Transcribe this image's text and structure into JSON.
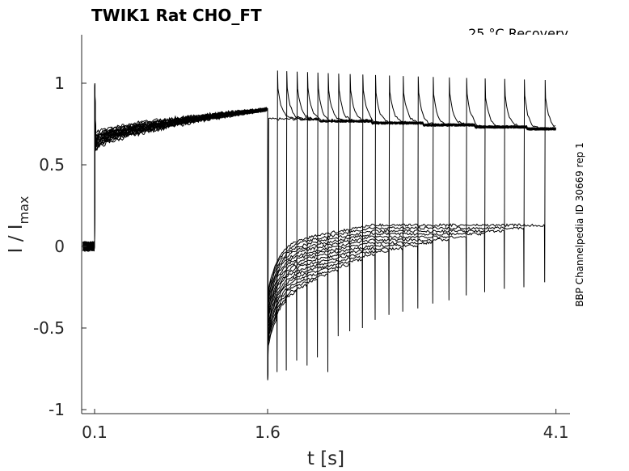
{
  "chart_data": {
    "type": "line",
    "title": "TWIK1  Rat  CHO_FT",
    "annotation": "25 °C  Recovery",
    "side_label": "BBP Channelpedia ID 30669 rep 1",
    "xlabel": "t [s]",
    "ylabel": "I / I",
    "ylabel_subscript": "max",
    "x_ticks": [
      "0.1",
      "1.6",
      "4.1"
    ],
    "x_tick_values": [
      0.1,
      1.6,
      4.1
    ],
    "y_ticks": [
      "1",
      "0.5",
      "0",
      "-0.5",
      "-1"
    ],
    "y_tick_values": [
      1,
      0.5,
      0,
      -0.5,
      -1
    ],
    "xlim": [
      0.0,
      4.15
    ],
    "ylim": [
      -1.05,
      1.3
    ],
    "line_color": "#000000",
    "grid": false,
    "prepulse_level_range": [
      0.7,
      0.84
    ],
    "test_pulse_onsets_s": [
      1.6,
      1.68,
      1.76,
      1.85,
      1.94,
      2.03,
      2.12,
      2.21,
      2.31,
      2.42,
      2.53,
      2.65,
      2.77,
      2.9,
      3.03,
      3.17,
      3.32,
      3.48,
      3.65,
      3.82,
      4.0
    ],
    "recovery_troughs": [
      -0.78,
      -0.77,
      -0.76,
      -0.7,
      -0.73,
      -0.68,
      -0.77,
      -0.55,
      -0.52,
      -0.5,
      -0.45,
      -0.42,
      -0.4,
      -0.38,
      -0.35,
      -0.33,
      -0.3,
      -0.28,
      -0.26,
      -0.25,
      -0.22
    ]
  }
}
